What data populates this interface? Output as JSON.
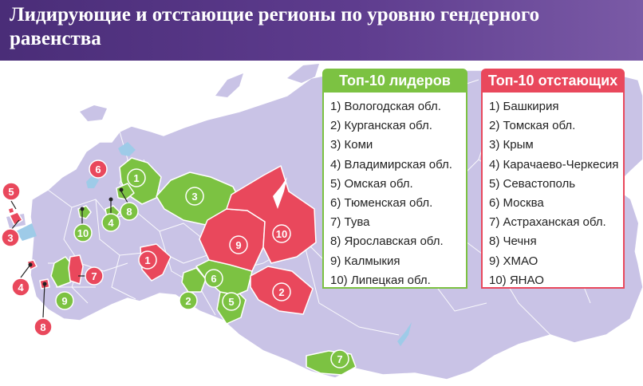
{
  "title": "Лидирующие и отстающие регионы по уровню гендерного равенства",
  "colors": {
    "header": "#4a2d78",
    "map_land": "#c9c3e6",
    "leader": "#7cc242",
    "lagging": "#e9485c",
    "water": "#9ecbe8"
  },
  "leaders": {
    "heading": "Топ-10 лидеров",
    "items": [
      "1) Вологодская обл.",
      "2) Курганская обл.",
      "3) Коми",
      "4) Владимирская обл.",
      "5) Омская обл.",
      "6) Тюменская обл.",
      "7) Тува",
      "8) Ярославская обл.",
      "9) Калмыкия",
      "10) Липецкая обл."
    ]
  },
  "lagging": {
    "heading": "Топ-10 отстающих",
    "items": [
      "1) Башкирия",
      "2) Томская обл.",
      "3) Крым",
      "4) Карачаево-Черкесия",
      "5) Севастополь",
      "6) Москва",
      "7) Астраханская обл.",
      "8) Чечня",
      "9) ХМАО",
      "10) ЯНАО"
    ]
  },
  "map_labels": {
    "leaders": [
      "1",
      "2",
      "3",
      "4",
      "5",
      "6",
      "7",
      "8",
      "9",
      "10"
    ],
    "lagging": [
      "1",
      "2",
      "3",
      "4",
      "5",
      "6",
      "7",
      "8",
      "9",
      "10"
    ]
  }
}
